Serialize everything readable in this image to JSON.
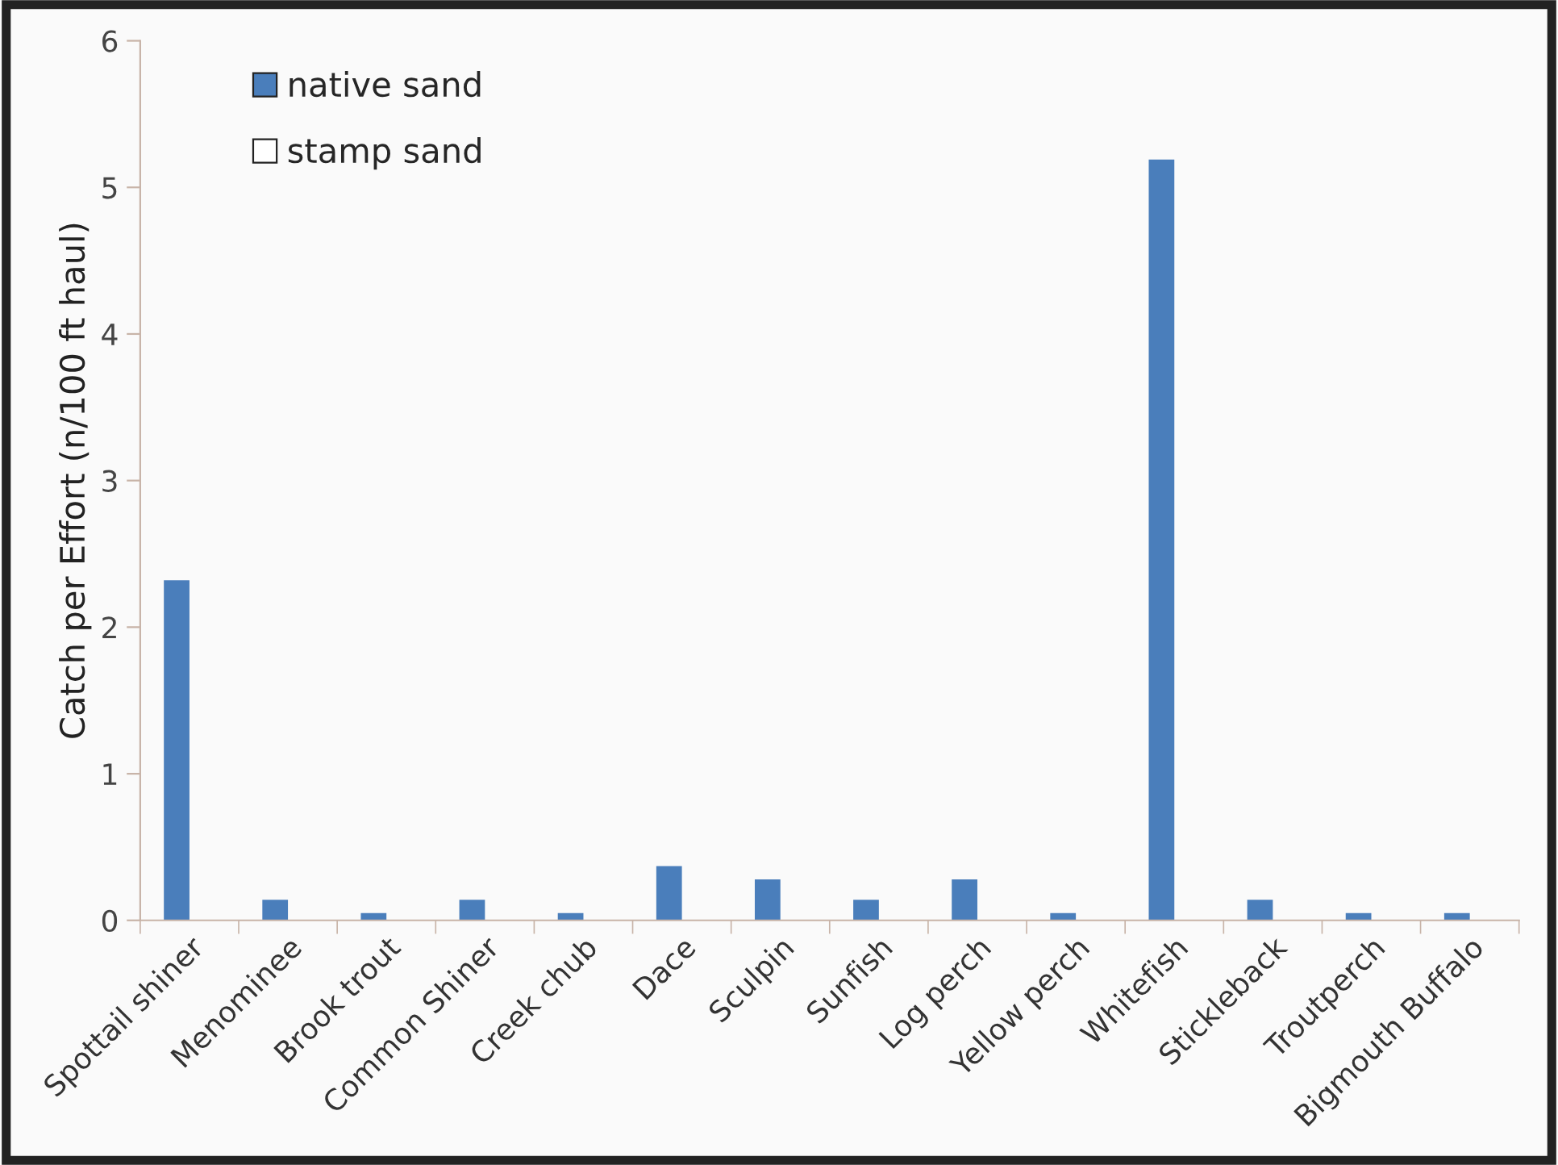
{
  "chart_data": {
    "type": "bar",
    "ylabel": "Catch per Effort (n/100 ft haul)",
    "categories": [
      "Spottail shiner",
      "Menominee",
      "Brook trout",
      "Common Shiner",
      "Creek chub",
      "Dace",
      "Sculpin",
      "Sunfish",
      "Log perch",
      "Yellow perch",
      "Whitefish",
      "Stickleback",
      "Troutperch",
      "Bigmouth Buffalo"
    ],
    "series": [
      {
        "name": "native sand",
        "color": "#4a7ebb",
        "values": [
          2.32,
          0.14,
          0.05,
          0.14,
          0.05,
          0.37,
          0.28,
          0.14,
          0.28,
          0.05,
          5.19,
          0.14,
          0.05,
          0.05
        ]
      },
      {
        "name": "stamp sand",
        "color": "#ffffff",
        "values": [
          0,
          0,
          0,
          0,
          0,
          0,
          0,
          0,
          0,
          0,
          0,
          0,
          0,
          0
        ]
      }
    ],
    "ylim": [
      0,
      6
    ],
    "yticks": [
      0,
      1,
      2,
      3,
      4,
      5,
      6
    ],
    "grid": false,
    "legend": "top left"
  }
}
